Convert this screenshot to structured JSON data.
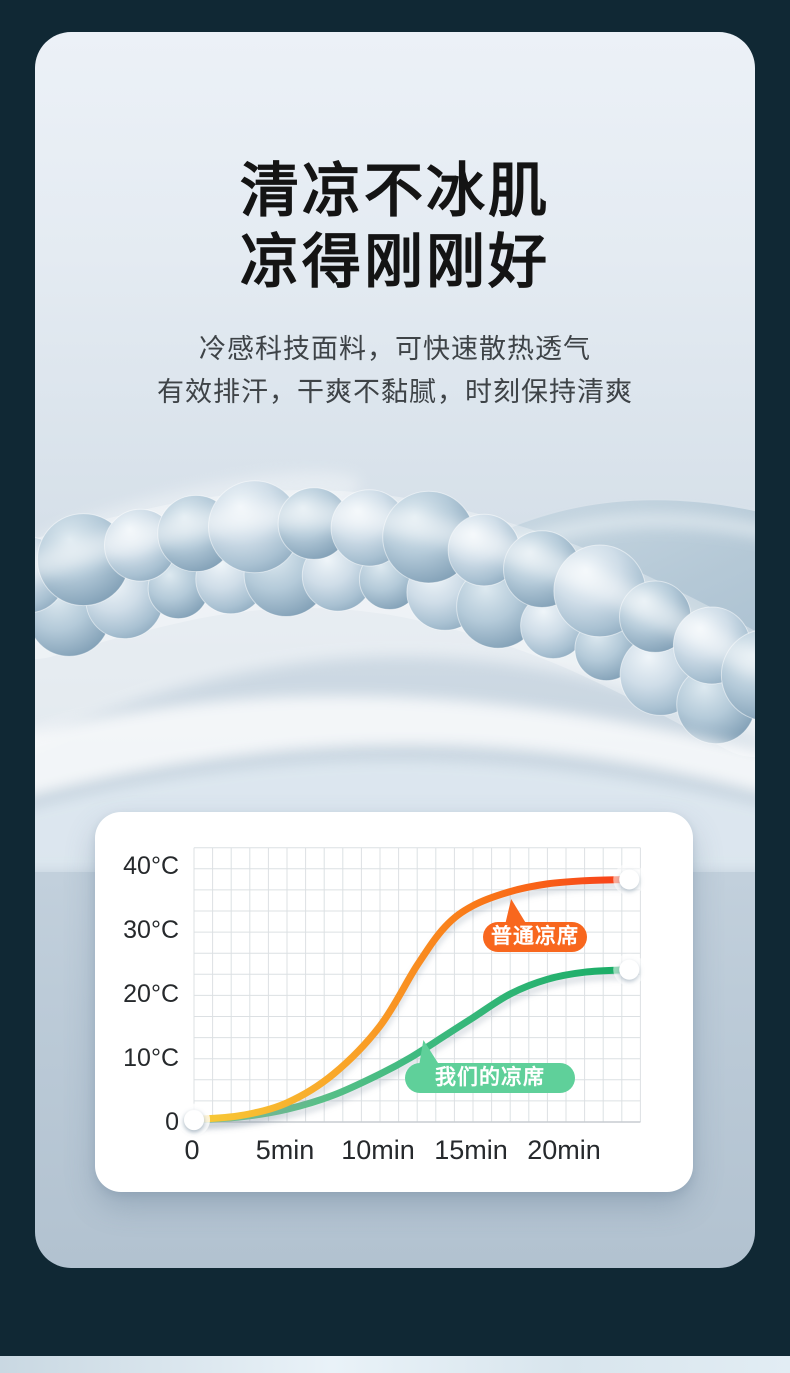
{
  "page": {
    "background_color": "#102834",
    "card": {
      "title_line1": "清凉不冰肌",
      "title_line2": "凉得刚刚好",
      "subtitle_line1": "冷感科技面料，可快速散热透气",
      "subtitle_line2": "有效排汗，干爽不黏腻，时刻保持清爽"
    }
  },
  "chart_data": {
    "type": "line",
    "title": "",
    "xlabel": "",
    "ylabel": "",
    "x_axis": {
      "unit": "min",
      "ticks": [
        "0",
        "5min",
        "10min",
        "15min",
        "20min"
      ],
      "tick_values": [
        0,
        5,
        10,
        15,
        20
      ],
      "range": [
        0,
        24
      ]
    },
    "y_axis": {
      "unit": "°C",
      "ticks": [
        "40°C",
        "30°C",
        "20°C",
        "10°C",
        "0"
      ],
      "tick_values": [
        40,
        30,
        20,
        10,
        0
      ],
      "range": [
        0,
        44
      ]
    },
    "grid": true,
    "legend_position": "inline-callouts",
    "series": [
      {
        "name": "普通凉席",
        "badge_color": "#F8671E",
        "line_gradient": [
          "#F7CB37",
          "#F9A629",
          "#F97317",
          "#F8391A"
        ],
        "points": [
          [
            0,
            0.4
          ],
          [
            2.5,
            1
          ],
          [
            5,
            3
          ],
          [
            7.5,
            7.5
          ],
          [
            10,
            15
          ],
          [
            12,
            24.5
          ],
          [
            13.5,
            30.5
          ],
          [
            15,
            33.8
          ],
          [
            17,
            36
          ],
          [
            19,
            37.2
          ],
          [
            21,
            37.7
          ],
          [
            23.4,
            37.9
          ]
        ]
      },
      {
        "name": "我们的凉席",
        "badge_color": "#5FD09A",
        "line_gradient": [
          "#7AC692",
          "#3FBA80",
          "#17AC64"
        ],
        "points": [
          [
            0,
            0.3
          ],
          [
            2.5,
            0.8
          ],
          [
            5,
            2
          ],
          [
            7.5,
            4.2
          ],
          [
            10,
            7.5
          ],
          [
            11.6,
            10
          ],
          [
            13.5,
            13.5
          ],
          [
            15,
            16.3
          ],
          [
            17,
            20
          ],
          [
            19,
            22.3
          ],
          [
            21,
            23.4
          ],
          [
            23.4,
            23.8
          ]
        ]
      }
    ]
  }
}
